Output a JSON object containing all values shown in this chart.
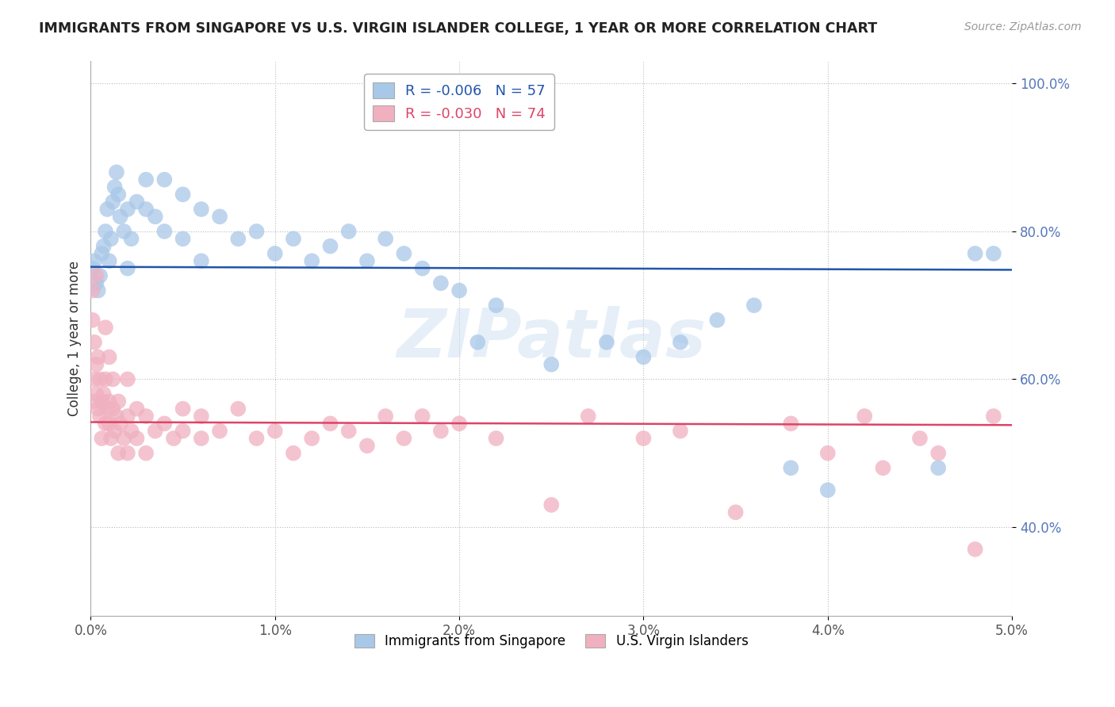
{
  "title": "IMMIGRANTS FROM SINGAPORE VS U.S. VIRGIN ISLANDER COLLEGE, 1 YEAR OR MORE CORRELATION CHART",
  "source": "Source: ZipAtlas.com",
  "ylabel": "College, 1 year or more",
  "xlim": [
    0.0,
    0.05
  ],
  "ylim": [
    0.28,
    1.03
  ],
  "xticks": [
    0.0,
    0.01,
    0.02,
    0.03,
    0.04,
    0.05
  ],
  "xticklabels": [
    "0.0%",
    "1.0%",
    "2.0%",
    "3.0%",
    "4.0%",
    "5.0%"
  ],
  "yticks": [
    0.4,
    0.6,
    0.8,
    1.0
  ],
  "yticklabels": [
    "40.0%",
    "60.0%",
    "80.0%",
    "100.0%"
  ],
  "legend_labels": [
    "Immigrants from Singapore",
    "U.S. Virgin Islanders"
  ],
  "blue_R": -0.006,
  "blue_N": 57,
  "pink_R": -0.03,
  "pink_N": 74,
  "blue_color": "#a8c8e8",
  "pink_color": "#f0b0c0",
  "blue_line_color": "#2255aa",
  "pink_line_color": "#dd4466",
  "watermark": "ZIPatlas",
  "blue_line_y0": 0.752,
  "blue_line_y1": 0.748,
  "pink_line_y0": 0.542,
  "pink_line_y1": 0.538,
  "blue_scatter_x": [
    0.0001,
    0.0002,
    0.0003,
    0.0004,
    0.0005,
    0.0006,
    0.0007,
    0.0008,
    0.0009,
    0.001,
    0.0011,
    0.0012,
    0.0013,
    0.0014,
    0.0015,
    0.0016,
    0.0018,
    0.002,
    0.002,
    0.0022,
    0.0025,
    0.003,
    0.003,
    0.0035,
    0.004,
    0.004,
    0.005,
    0.005,
    0.006,
    0.006,
    0.007,
    0.008,
    0.009,
    0.01,
    0.011,
    0.012,
    0.013,
    0.014,
    0.015,
    0.016,
    0.017,
    0.018,
    0.019,
    0.02,
    0.021,
    0.022,
    0.025,
    0.028,
    0.03,
    0.032,
    0.034,
    0.036,
    0.038,
    0.04,
    0.046,
    0.048,
    0.049
  ],
  "blue_scatter_y": [
    0.75,
    0.76,
    0.73,
    0.72,
    0.74,
    0.77,
    0.78,
    0.8,
    0.83,
    0.76,
    0.79,
    0.84,
    0.86,
    0.88,
    0.85,
    0.82,
    0.8,
    0.83,
    0.75,
    0.79,
    0.84,
    0.87,
    0.83,
    0.82,
    0.87,
    0.8,
    0.85,
    0.79,
    0.83,
    0.76,
    0.82,
    0.79,
    0.8,
    0.77,
    0.79,
    0.76,
    0.78,
    0.8,
    0.76,
    0.79,
    0.77,
    0.75,
    0.73,
    0.72,
    0.65,
    0.7,
    0.62,
    0.65,
    0.63,
    0.65,
    0.68,
    0.7,
    0.48,
    0.45,
    0.48,
    0.77,
    0.77
  ],
  "pink_scatter_x": [
    0.0001,
    0.0001,
    0.0002,
    0.0002,
    0.0002,
    0.0003,
    0.0003,
    0.0004,
    0.0004,
    0.0005,
    0.0005,
    0.0006,
    0.0006,
    0.0007,
    0.0008,
    0.0008,
    0.0009,
    0.001,
    0.001,
    0.0011,
    0.0012,
    0.0012,
    0.0013,
    0.0014,
    0.0015,
    0.0015,
    0.0016,
    0.0018,
    0.002,
    0.002,
    0.0022,
    0.0025,
    0.0025,
    0.003,
    0.003,
    0.0035,
    0.004,
    0.0045,
    0.005,
    0.005,
    0.006,
    0.006,
    0.007,
    0.008,
    0.009,
    0.01,
    0.011,
    0.012,
    0.013,
    0.014,
    0.015,
    0.016,
    0.017,
    0.018,
    0.019,
    0.02,
    0.022,
    0.025,
    0.027,
    0.03,
    0.032,
    0.035,
    0.038,
    0.04,
    0.042,
    0.043,
    0.045,
    0.046,
    0.048,
    0.049,
    0.0003,
    0.0008,
    0.001,
    0.002
  ],
  "pink_scatter_y": [
    0.72,
    0.68,
    0.65,
    0.6,
    0.57,
    0.62,
    0.58,
    0.63,
    0.56,
    0.6,
    0.55,
    0.57,
    0.52,
    0.58,
    0.54,
    0.6,
    0.56,
    0.54,
    0.57,
    0.52,
    0.56,
    0.6,
    0.53,
    0.55,
    0.5,
    0.57,
    0.54,
    0.52,
    0.55,
    0.5,
    0.53,
    0.56,
    0.52,
    0.55,
    0.5,
    0.53,
    0.54,
    0.52,
    0.56,
    0.53,
    0.52,
    0.55,
    0.53,
    0.56,
    0.52,
    0.53,
    0.5,
    0.52,
    0.54,
    0.53,
    0.51,
    0.55,
    0.52,
    0.55,
    0.53,
    0.54,
    0.52,
    0.43,
    0.55,
    0.52,
    0.53,
    0.42,
    0.54,
    0.5,
    0.55,
    0.48,
    0.52,
    0.5,
    0.37,
    0.55,
    0.74,
    0.67,
    0.63,
    0.6
  ]
}
